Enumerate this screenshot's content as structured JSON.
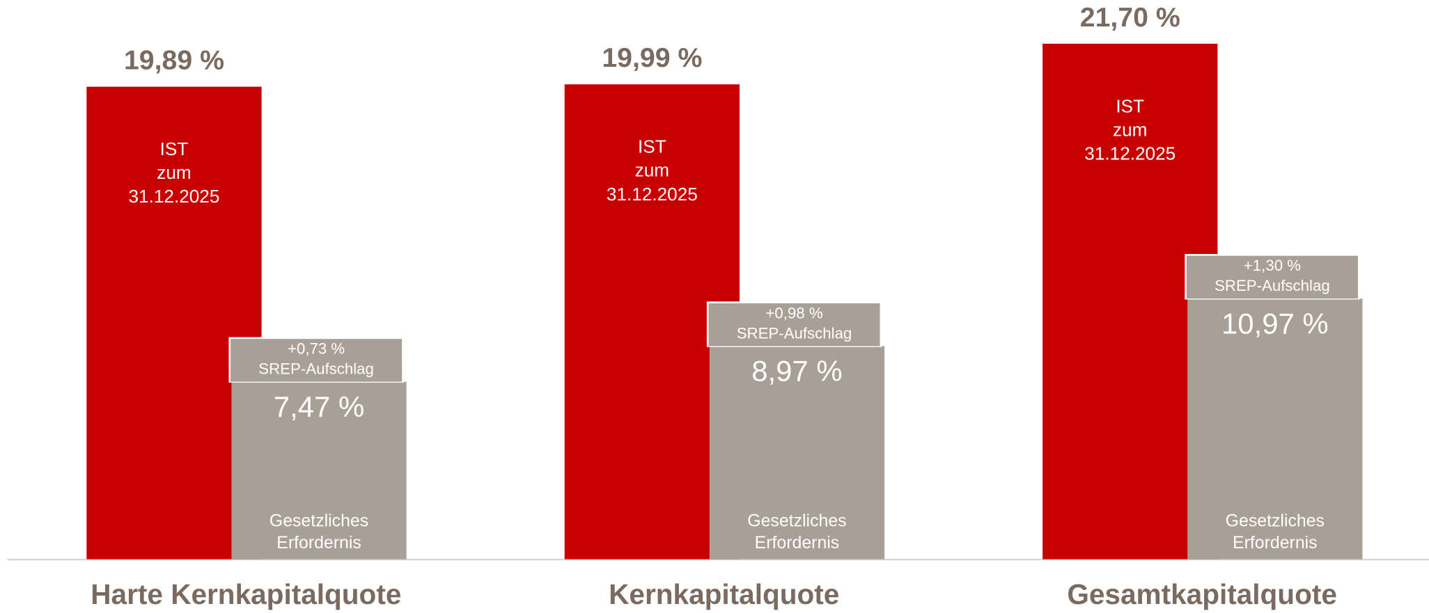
{
  "chart_data": {
    "type": "bar",
    "categories": [
      "Harte Kernkapitalquote",
      "Kernkapitalquote",
      "Gesamtkapitalquote"
    ],
    "ylim": [
      0,
      23
    ],
    "series": [
      {
        "color": "#c80000",
        "values": [
          19.89,
          19.99,
          21.7
        ],
        "value_labels": [
          "19,89 %",
          "19,99 %",
          "21,70 %"
        ],
        "label_lines": [
          "IST",
          "zum",
          "31.12.2025"
        ]
      },
      {
        "color": "#a89f96",
        "values": [
          7.47,
          8.97,
          10.97
        ],
        "value_labels": [
          "7,47 %",
          "8,97 %",
          "10,97 %"
        ],
        "label_lines": [
          "Gesetzliches",
          "Erfordernis"
        ]
      },
      {
        "color": "#a89f96",
        "values": [
          0.73,
          0.98,
          1.3
        ],
        "value_labels": [
          "+0,73 %",
          "+0,98 %",
          "+1,30 %"
        ],
        "label_lines": [
          "SREP-Aufschlag"
        ]
      }
    ]
  }
}
